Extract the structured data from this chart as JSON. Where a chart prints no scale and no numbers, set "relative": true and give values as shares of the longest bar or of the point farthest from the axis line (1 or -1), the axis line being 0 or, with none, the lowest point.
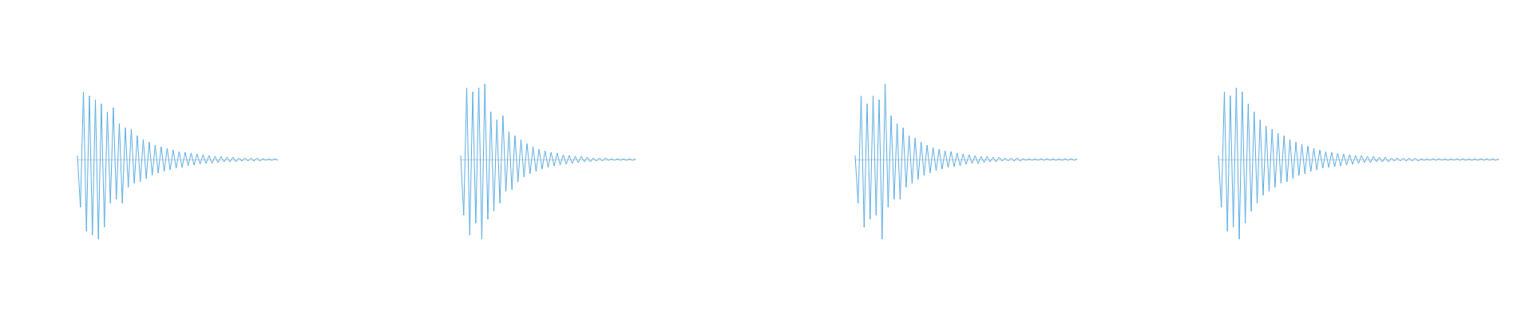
{
  "chart_data": [
    {
      "type": "line",
      "relative": true,
      "marker": "none",
      "categories": [
        null,
        null,
        null,
        null,
        null,
        null,
        null,
        null,
        null,
        null,
        null,
        null,
        null,
        null,
        null,
        null,
        null,
        null,
        null,
        null,
        null,
        null,
        null,
        null,
        null,
        null,
        null,
        null,
        null,
        null,
        null,
        null,
        null,
        null,
        null,
        null,
        null,
        null,
        null,
        null,
        null,
        null,
        null,
        null,
        null,
        null,
        null,
        null,
        null,
        null,
        null,
        null,
        null,
        null,
        null,
        null,
        null,
        null,
        null,
        null,
        null,
        null,
        null,
        null,
        null,
        null,
        null,
        null
      ],
      "series": [
        {
          "color": "#5dade2",
          "values": [
            0.05,
            -0.6,
            0.85,
            -0.9,
            0.8,
            -0.95,
            0.75,
            -1,
            0.7,
            -0.85,
            0.6,
            -0.55,
            0.65,
            -0.5,
            0.45,
            -0.55,
            0.4,
            -0.35,
            0.38,
            -0.3,
            0.3,
            -0.28,
            0.25,
            -0.24,
            0.22,
            -0.2,
            0.18,
            -0.17,
            0.16,
            -0.15,
            0.14,
            -0.13,
            0.12,
            -0.11,
            0.1,
            -0.1,
            0.09,
            -0.08,
            0.08,
            -0.07,
            0.07,
            -0.06,
            0.06,
            -0.05,
            0.05,
            -0.05,
            0.04,
            -0.04,
            0.04,
            -0.03,
            0.03,
            -0.03,
            0.03,
            -0.03,
            0.02,
            -0.02,
            0.02,
            -0.02,
            0.02,
            -0.02,
            0.02,
            -0.02,
            0.01,
            -0.01,
            0.01,
            -0.01,
            0.01,
            -0.01
          ]
        }
      ]
    },
    {
      "type": "line",
      "relative": true,
      "marker": "none",
      "categories": [
        null,
        null,
        null,
        null,
        null,
        null,
        null,
        null,
        null,
        null,
        null,
        null,
        null,
        null,
        null,
        null,
        null,
        null,
        null,
        null,
        null,
        null,
        null,
        null,
        null,
        null,
        null,
        null,
        null,
        null,
        null,
        null,
        null,
        null,
        null,
        null,
        null,
        null,
        null,
        null,
        null,
        null,
        null,
        null,
        null,
        null,
        null,
        null,
        null,
        null,
        null,
        null,
        null,
        null,
        null,
        null,
        null,
        null,
        null
      ],
      "series": [
        {
          "color": "#5dade2",
          "values": [
            0.05,
            -0.7,
            0.9,
            -0.95,
            0.85,
            -0.8,
            0.9,
            -1,
            0.95,
            -0.75,
            0.6,
            -0.65,
            0.5,
            -0.55,
            0.55,
            -0.4,
            0.35,
            -0.38,
            0.3,
            -0.28,
            0.25,
            -0.22,
            0.2,
            -0.18,
            0.16,
            -0.15,
            0.13,
            -0.12,
            0.11,
            -0.1,
            0.09,
            -0.08,
            0.08,
            -0.07,
            0.06,
            -0.06,
            0.05,
            -0.05,
            0.04,
            -0.04,
            0.04,
            -0.03,
            0.03,
            -0.03,
            0.02,
            -0.02,
            0.02,
            -0.02,
            0.02,
            -0.01,
            0.01,
            -0.01,
            0.01,
            -0.01,
            0.01,
            -0.01,
            0.01,
            -0.01,
            0.01
          ]
        }
      ]
    },
    {
      "type": "line",
      "relative": true,
      "marker": "none",
      "categories": [
        null,
        null,
        null,
        null,
        null,
        null,
        null,
        null,
        null,
        null,
        null,
        null,
        null,
        null,
        null,
        null,
        null,
        null,
        null,
        null,
        null,
        null,
        null,
        null,
        null,
        null,
        null,
        null,
        null,
        null,
        null,
        null,
        null,
        null,
        null,
        null,
        null,
        null,
        null,
        null,
        null,
        null,
        null,
        null,
        null,
        null,
        null,
        null,
        null,
        null,
        null,
        null,
        null,
        null,
        null,
        null,
        null,
        null,
        null,
        null,
        null,
        null,
        null,
        null,
        null,
        null,
        null,
        null,
        null,
        null,
        null,
        null,
        null,
        null,
        null
      ],
      "series": [
        {
          "color": "#5dade2",
          "values": [
            0.05,
            -0.55,
            0.8,
            -0.85,
            0.7,
            -0.75,
            0.8,
            -0.7,
            0.75,
            -1,
            0.95,
            -0.6,
            0.55,
            -0.5,
            0.45,
            -0.5,
            0.4,
            -0.35,
            0.3,
            -0.3,
            0.27,
            -0.25,
            0.22,
            -0.2,
            0.18,
            -0.17,
            0.15,
            -0.14,
            0.13,
            -0.12,
            0.11,
            -0.1,
            0.1,
            -0.09,
            0.08,
            -0.08,
            0.07,
            -0.06,
            0.06,
            -0.05,
            0.05,
            -0.05,
            0.04,
            -0.04,
            0.04,
            -0.03,
            0.03,
            -0.03,
            0.03,
            -0.02,
            0.02,
            -0.02,
            0.02,
            -0.02,
            0.02,
            -0.02,
            0.01,
            -0.01,
            0.01,
            -0.01,
            0.01,
            -0.01,
            0.01,
            -0.01,
            0.01,
            -0.01,
            0.01,
            -0.01,
            0.01,
            -0.01,
            0.01,
            -0.01,
            0.01,
            -0.01,
            0.01
          ]
        }
      ]
    },
    {
      "type": "line",
      "relative": true,
      "marker": "none",
      "categories": [
        null,
        null,
        null,
        null,
        null,
        null,
        null,
        null,
        null,
        null,
        null,
        null,
        null,
        null,
        null,
        null,
        null,
        null,
        null,
        null,
        null,
        null,
        null,
        null,
        null,
        null,
        null,
        null,
        null,
        null,
        null,
        null,
        null,
        null,
        null,
        null,
        null,
        null,
        null,
        null,
        null,
        null,
        null,
        null,
        null,
        null,
        null,
        null,
        null,
        null,
        null,
        null,
        null,
        null,
        null,
        null,
        null,
        null,
        null,
        null,
        null,
        null,
        null,
        null,
        null,
        null,
        null,
        null,
        null,
        null,
        null,
        null,
        null,
        null,
        null,
        null,
        null,
        null,
        null,
        null,
        null,
        null,
        null,
        null,
        null,
        null,
        null,
        null,
        null,
        null,
        null,
        null,
        null,
        null,
        null
      ],
      "series": [
        {
          "color": "#5dade2",
          "values": [
            0.05,
            -0.6,
            0.85,
            -0.9,
            0.8,
            -0.85,
            0.9,
            -1,
            0.85,
            -0.8,
            0.7,
            -0.65,
            0.6,
            -0.55,
            0.5,
            -0.45,
            0.42,
            -0.4,
            0.38,
            -0.35,
            0.33,
            -0.3,
            0.3,
            -0.28,
            0.25,
            -0.24,
            0.22,
            -0.2,
            0.19,
            -0.18,
            0.17,
            -0.15,
            0.14,
            -0.13,
            0.12,
            -0.11,
            0.1,
            -0.1,
            0.09,
            -0.09,
            0.08,
            -0.08,
            0.07,
            -0.07,
            0.06,
            -0.06,
            0.05,
            -0.05,
            0.05,
            -0.04,
            0.04,
            -0.04,
            0.04,
            -0.03,
            0.03,
            -0.03,
            0.03,
            -0.03,
            0.02,
            -0.02,
            0.02,
            -0.02,
            0.02,
            -0.02,
            0.02,
            -0.02,
            0.02,
            -0.02,
            0.01,
            -0.01,
            0.01,
            -0.01,
            0.01,
            -0.01,
            0.01,
            -0.01,
            0.01,
            -0.01,
            0.01,
            -0.01,
            0.01,
            -0.01,
            0.01,
            -0.01,
            0.01,
            -0.01,
            0.01,
            -0.01,
            0.01,
            -0.01,
            0.01,
            -0.01,
            0.01,
            -0.01,
            0.01
          ]
        }
      ]
    }
  ]
}
